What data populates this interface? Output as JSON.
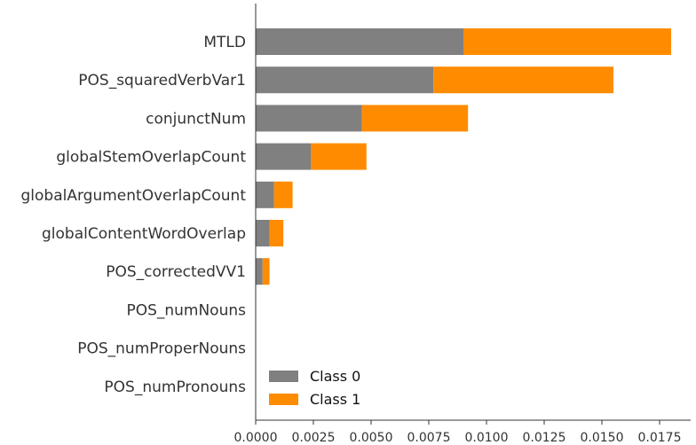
{
  "chart_data": {
    "type": "bar",
    "orientation": "horizontal",
    "stacked": true,
    "categories": [
      "MTLD",
      "POS_squaredVerbVar1",
      "conjunctNum",
      "globalStemOverlapCount",
      "globalArgumentOverlapCount",
      "globalContentWordOverlap",
      "POS_correctedVV1",
      "POS_numNouns",
      "POS_numProperNouns",
      "POS_numPronouns"
    ],
    "series": [
      {
        "name": "Class 0",
        "color": "#808080",
        "values": [
          0.009,
          0.0077,
          0.0046,
          0.0024,
          0.0008,
          0.0006,
          0.0003,
          0.0,
          0.0,
          0.0
        ]
      },
      {
        "name": "Class 1",
        "color": "#ff8c00",
        "values": [
          0.009,
          0.0078,
          0.0046,
          0.0024,
          0.0008,
          0.0006,
          0.0003,
          0.0,
          0.0,
          0.0
        ]
      }
    ],
    "xticks": [
      "0.0000",
      "0.0025",
      "0.0050",
      "0.0075",
      "0.0100",
      "0.0125",
      "0.0150",
      "0.0175"
    ],
    "xlim": [
      0,
      0.0188
    ],
    "title": "",
    "xlabel": "",
    "ylabel": "",
    "legend_position": "lower-left",
    "grid": false
  }
}
